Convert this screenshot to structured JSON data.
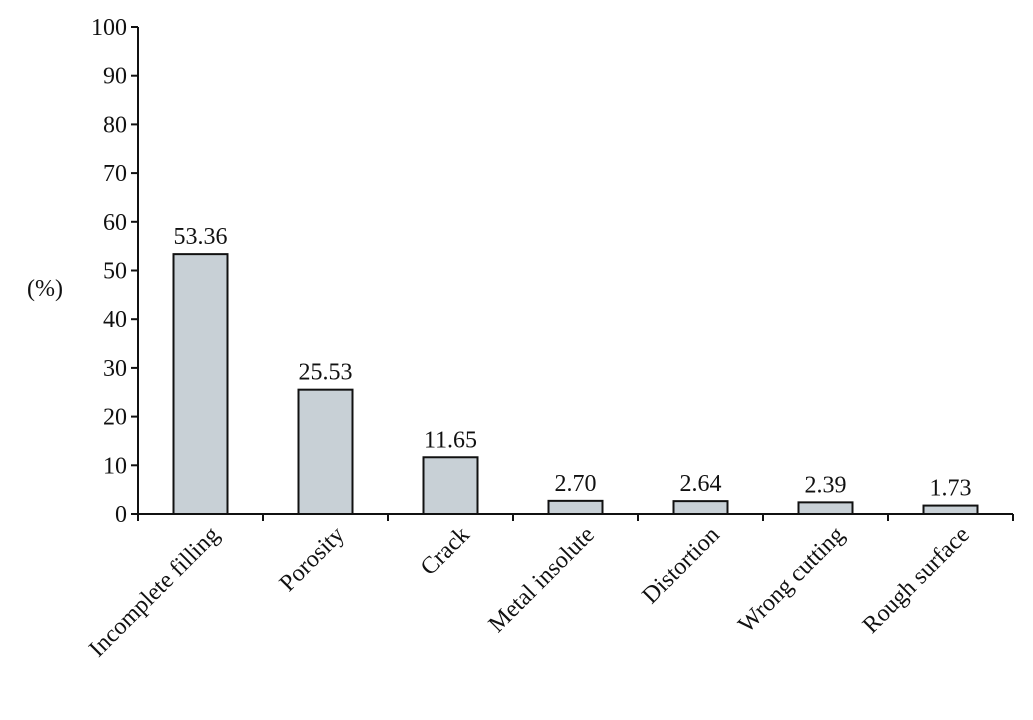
{
  "chart_data": {
    "type": "bar",
    "title": "",
    "xlabel": "",
    "ylabel": "(%)",
    "ylim": [
      0,
      100
    ],
    "yticks": [
      0,
      10,
      20,
      30,
      40,
      50,
      60,
      70,
      80,
      90,
      100
    ],
    "grid": false,
    "legend": "none",
    "categories": [
      "Incomplete filling",
      "Porosity",
      "Crack",
      "Metal insolute",
      "Distortion",
      "Wrong cutting",
      "Rough surface"
    ],
    "values": [
      53.36,
      25.53,
      11.65,
      2.7,
      2.64,
      2.39,
      1.73
    ],
    "value_labels": [
      "53.36",
      "25.53",
      "11.65",
      "2.70",
      "2.64",
      "2.39",
      "1.73"
    ],
    "bar_color": "#c8d0d6",
    "bar_edge_color": "#111111"
  }
}
